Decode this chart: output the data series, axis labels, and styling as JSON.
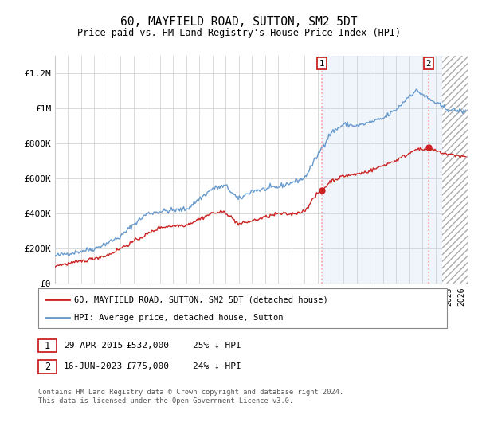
{
  "title": "60, MAYFIELD ROAD, SUTTON, SM2 5DT",
  "subtitle": "Price paid vs. HM Land Registry's House Price Index (HPI)",
  "ylim": [
    0,
    1300000
  ],
  "yticks": [
    0,
    200000,
    400000,
    600000,
    800000,
    1000000,
    1200000
  ],
  "ytick_labels": [
    "£0",
    "£200K",
    "£400K",
    "£600K",
    "£800K",
    "£1M",
    "£1.2M"
  ],
  "hpi_color": "#6699cc",
  "price_color": "#cc2222",
  "marker1_x": 2015.33,
  "marker1_y": 532000,
  "marker1_label": "29-APR-2015",
  "marker1_price": "£532,000",
  "marker1_note": "25% ↓ HPI",
  "marker2_x": 2023.46,
  "marker2_y": 775000,
  "marker2_label": "16-JUN-2023",
  "marker2_price": "£775,000",
  "marker2_note": "24% ↓ HPI",
  "legend_line1": "60, MAYFIELD ROAD, SUTTON, SM2 5DT (detached house)",
  "legend_line2": "HPI: Average price, detached house, Sutton",
  "footer": "Contains HM Land Registry data © Crown copyright and database right 2024.\nThis data is licensed under the Open Government Licence v3.0.",
  "background_color": "#ffffff",
  "grid_color": "#cccccc",
  "shade_color": "#ddeeff",
  "hatch_start": 2024.5,
  "xmin": 1995,
  "xmax": 2026.5
}
